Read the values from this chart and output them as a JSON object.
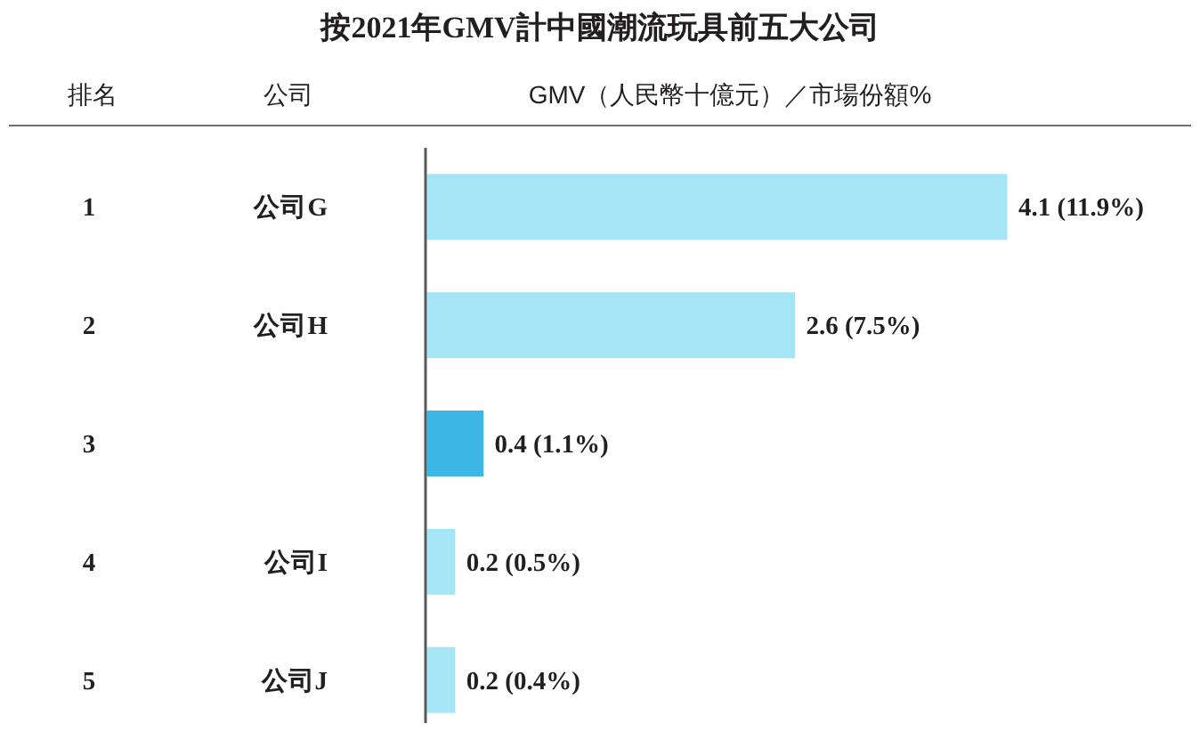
{
  "chart_data": {
    "type": "bar",
    "orientation": "horizontal",
    "title": "按2021年GMV計中國潮流玩具前五大公司",
    "xlabel": "GMV（人民幣十億元）／市場份額%",
    "ylabel": "公司",
    "annotations": [
      "排名"
    ],
    "categories": [
      "公司G",
      "公司H",
      null,
      "公司I",
      "公司J"
    ],
    "y2_categories": [
      "1",
      "2",
      "3",
      "4",
      "5"
    ],
    "values": [
      4.1,
      2.6,
      0.4,
      0.2,
      0.2
    ],
    "colors": [
      "#a5e5f5",
      "#a5e5f5",
      "#3bb6e5",
      "#a5e5f5",
      "#a5e5f5"
    ],
    "value_labels": [
      "4.1 (11.9%)",
      "2.6 (7.5%)",
      "0.4 (1.1%)",
      "0.2 (0.5%)",
      "0.2 (0.4%)"
    ]
  }
}
